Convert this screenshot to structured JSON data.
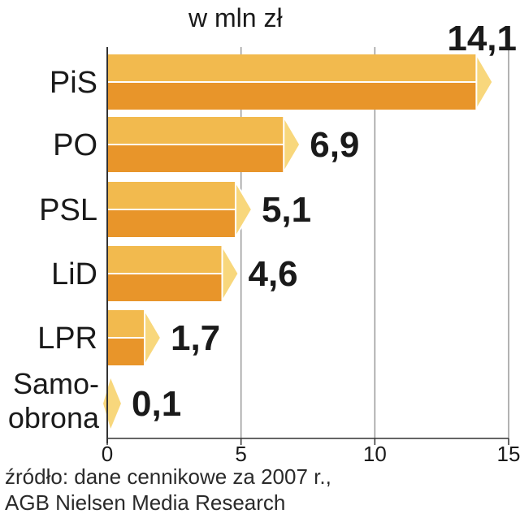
{
  "chart_data": {
    "type": "bar",
    "orientation": "horizontal",
    "title": "w mln zł",
    "categories": [
      "PiS",
      "PO",
      "PSL",
      "LiD",
      "LPR",
      "Samo-\nobrona"
    ],
    "values": [
      14.1,
      6.9,
      5.1,
      4.6,
      1.7,
      0.1
    ],
    "value_labels": [
      "14,1",
      "6,9",
      "5,1",
      "4,6",
      "1,7",
      "0,1"
    ],
    "xlim": [
      0,
      15
    ],
    "xticks": [
      0,
      5,
      10,
      15
    ],
    "xtick_labels": [
      "0",
      "5",
      "10",
      "15"
    ],
    "grid": true,
    "colors": {
      "bar_top": "#F2BA4E",
      "bar_bottom": "#E8952A",
      "bar_end": "#F8D77C",
      "grid": "#9a9a9a",
      "axis": "#333333",
      "text": "#1a1a1a"
    }
  },
  "source": {
    "line1": "źródło: dane cennikowe za 2007 r.,",
    "line2": "AGB Nielsen Media Research"
  }
}
